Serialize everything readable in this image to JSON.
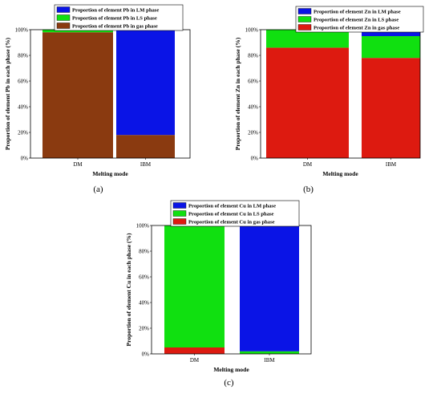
{
  "colors": {
    "lm": "#0a14e6",
    "ls": "#10e010",
    "gas_pb": "#8a3a10",
    "gas": "#dd1a10",
    "frame": "#000000"
  },
  "chart_data": [
    {
      "type": "bar",
      "stacked": true,
      "panel_label": "(a)",
      "categories": [
        "DM",
        "IBM"
      ],
      "xlabel": "Melting mode",
      "ylabel": "Proportion of element Pb in each phase (%)",
      "ylim": [
        0,
        100
      ],
      "yticks": [
        "0%",
        "20%",
        "40%",
        "60%",
        "80%",
        "100%"
      ],
      "legend_position": "top",
      "series": [
        {
          "name": "Proportion of element Pb in LM phase",
          "color": "#0a14e6",
          "values": [
            0,
            82
          ]
        },
        {
          "name": "Proportion of element Pb in LS phase",
          "color": "#10e010",
          "values": [
            2,
            0
          ]
        },
        {
          "name": "Proportion of element Pb in gas phase",
          "color": "#8a3a10",
          "values": [
            98,
            18
          ]
        }
      ]
    },
    {
      "type": "bar",
      "stacked": true,
      "panel_label": "(b)",
      "categories": [
        "DM",
        "IBM"
      ],
      "xlabel": "Melting mode",
      "ylabel": "Proportion of element Zn in each phase (%)",
      "ylim": [
        0,
        100
      ],
      "yticks": [
        "0%",
        "20%",
        "40%",
        "60%",
        "80%",
        "100%"
      ],
      "legend_position": "top",
      "series": [
        {
          "name": "Proportion of element Zn in LM phase",
          "color": "#0a14e6",
          "values": [
            0,
            5
          ]
        },
        {
          "name": "Proportion of element Zn in LS phase",
          "color": "#10e010",
          "values": [
            14,
            17
          ]
        },
        {
          "name": "Proportion of element Zn in gas phase",
          "color": "#dd1a10",
          "values": [
            86,
            78
          ]
        }
      ]
    },
    {
      "type": "bar",
      "stacked": true,
      "panel_label": "(c)",
      "categories": [
        "DM",
        "IBM"
      ],
      "xlabel": "Melting mode",
      "ylabel": "Proportion of element Cu in each phase (%)",
      "ylim": [
        0,
        100
      ],
      "yticks": [
        "0%",
        "20%",
        "40%",
        "60%",
        "80%",
        "100%"
      ],
      "legend_position": "top",
      "series": [
        {
          "name": "Proportion of element Cu in LM phase",
          "color": "#0a14e6",
          "values": [
            0,
            98
          ]
        },
        {
          "name": "Proportion of element Cu in LS phase",
          "color": "#10e010",
          "values": [
            95,
            2
          ]
        },
        {
          "name": "Proportion of element Cu in gas phase",
          "color": "#dd1a10",
          "values": [
            5,
            0
          ]
        }
      ]
    }
  ]
}
